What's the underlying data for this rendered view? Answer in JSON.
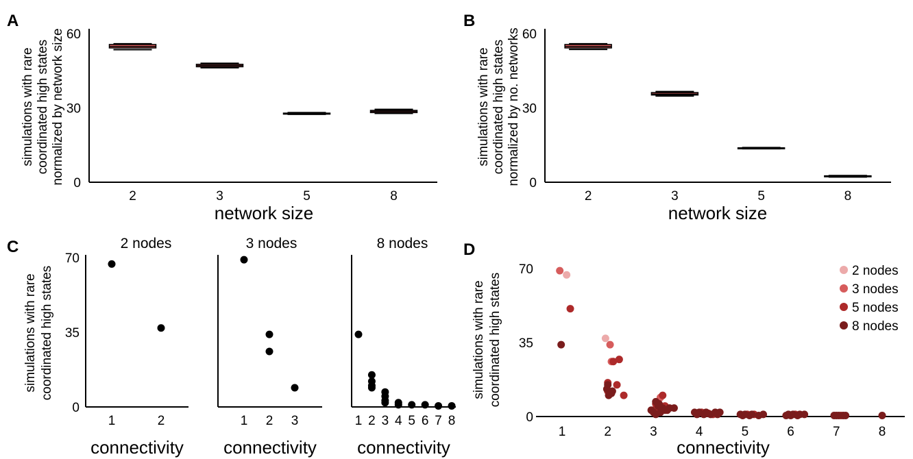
{
  "chart_data": [
    {
      "panel": "A",
      "type": "box",
      "categories": [
        "2",
        "3",
        "5",
        "8"
      ],
      "boxes": [
        {
          "low": 53.5,
          "q1": 54.2,
          "q3": 55.6,
          "high": 55.9,
          "median": 54.8
        },
        {
          "low": 46.2,
          "q1": 46.6,
          "q3": 47.6,
          "high": 48.0,
          "median": 47.1
        },
        {
          "low": 27.4,
          "q1": 27.6,
          "q3": 27.9,
          "high": 28.1,
          "median": 27.8
        },
        {
          "low": 27.8,
          "q1": 28.1,
          "q3": 29.0,
          "high": 29.4,
          "median": 28.6
        }
      ],
      "xlabel": "network size",
      "ylabel": [
        "simulations with rare",
        "coordinated high states",
        "normalized by network size"
      ],
      "yticks": [
        "0",
        "30",
        "60"
      ],
      "ylim": [
        0,
        60
      ],
      "box_color": "#e06060"
    },
    {
      "panel": "B",
      "type": "box",
      "categories": [
        "2",
        "3",
        "5",
        "8"
      ],
      "boxes": [
        {
          "low": 53.6,
          "q1": 54.2,
          "q3": 55.6,
          "high": 55.9,
          "median": 54.8
        },
        {
          "low": 34.8,
          "q1": 35.2,
          "q3": 36.2,
          "high": 36.6,
          "median": 35.6
        },
        {
          "low": 13.5,
          "q1": 13.7,
          "q3": 13.9,
          "high": 14.0,
          "median": 13.8
        },
        {
          "low": 2.1,
          "q1": 2.3,
          "q3": 2.6,
          "high": 2.7,
          "median": 2.4
        }
      ],
      "xlabel": "network size",
      "ylabel": [
        "simulations with rare",
        "coordinated high states",
        "normalized by no. networks"
      ],
      "yticks": [
        "0",
        "30",
        "60"
      ],
      "ylim": [
        0,
        60
      ],
      "box_color": "#e06060"
    },
    {
      "panel": "C",
      "type": "scatter",
      "subplots": [
        {
          "title": "2 nodes",
          "xticks": [
            "1",
            "2"
          ],
          "points": [
            [
              1,
              67
            ],
            [
              2,
              37
            ]
          ]
        },
        {
          "title": "3 nodes",
          "xticks": [
            "1",
            "2",
            "3"
          ],
          "points": [
            [
              1,
              69
            ],
            [
              2,
              34
            ],
            [
              2,
              26
            ],
            [
              3,
              9
            ]
          ]
        },
        {
          "title": "8 nodes",
          "xticks": [
            "1",
            "2",
            "3",
            "4",
            "5",
            "6",
            "7",
            "8"
          ],
          "points": [
            [
              1,
              34
            ],
            [
              2,
              15
            ],
            [
              2,
              12
            ],
            [
              2,
              10
            ],
            [
              2,
              9
            ],
            [
              3,
              7
            ],
            [
              3,
              5
            ],
            [
              3,
              3
            ],
            [
              3,
              2
            ],
            [
              4,
              2
            ],
            [
              4,
              1
            ],
            [
              5,
              1
            ],
            [
              6,
              1
            ],
            [
              7,
              0.5
            ],
            [
              8,
              0.5
            ]
          ]
        }
      ],
      "xlabel": "connectivity",
      "ylabel": [
        "simulations with rare",
        "coordinated high states"
      ],
      "yticks": [
        "0",
        "35",
        "70"
      ],
      "ylim": [
        0,
        70
      ]
    },
    {
      "panel": "D",
      "type": "scatter",
      "xlabel": "connectivity",
      "ylabel": [
        "simulations with rare",
        "coordinated high states"
      ],
      "xticks": [
        "1",
        "2",
        "3",
        "4",
        "5",
        "6",
        "7",
        "8"
      ],
      "yticks": [
        "0",
        "35",
        "70"
      ],
      "ylim": [
        0,
        70
      ],
      "legend": [
        {
          "name": "2 nodes",
          "color": "#ecaaaa"
        },
        {
          "name": "3 nodes",
          "color": "#d65c5c"
        },
        {
          "name": "5 nodes",
          "color": "#ad2a2a"
        },
        {
          "name": "8 nodes",
          "color": "#7a1c1c"
        }
      ],
      "series": [
        {
          "name": "2 nodes",
          "points": [
            [
              1.1,
              67
            ],
            [
              1.95,
              37
            ]
          ]
        },
        {
          "name": "3 nodes",
          "points": [
            [
              0.95,
              69
            ],
            [
              2.05,
              34
            ],
            [
              2.08,
              26
            ],
            [
              3.15,
              9
            ]
          ]
        },
        {
          "name": "5 nodes",
          "points": [
            [
              1.18,
              51
            ],
            [
              2.25,
              27
            ],
            [
              2.12,
              26
            ],
            [
              2.0,
              16
            ],
            [
              2.2,
              15
            ],
            [
              2.0,
              12
            ],
            [
              2.35,
              10
            ],
            [
              3.05,
              6
            ],
            [
              3.2,
              10
            ],
            [
              3.1,
              4
            ],
            [
              3.25,
              5
            ],
            [
              3.0,
              3
            ],
            [
              4.05,
              2
            ],
            [
              4.2,
              1.5
            ],
            [
              4.3,
              1
            ],
            [
              5.05,
              1
            ],
            [
              5.2,
              1
            ],
            [
              6.1,
              1
            ],
            [
              7.1,
              0.5
            ]
          ]
        },
        {
          "name": "8 nodes",
          "points": [
            [
              0.98,
              34
            ],
            [
              2.0,
              15
            ],
            [
              1.98,
              13
            ],
            [
              2.1,
              12
            ],
            [
              2.02,
              10
            ],
            [
              2.08,
              11
            ],
            [
              2.95,
              3
            ],
            [
              3.05,
              7
            ],
            [
              3.1,
              5
            ],
            [
              3.15,
              2
            ],
            [
              3.2,
              4
            ],
            [
              3.3,
              3
            ],
            [
              3.35,
              4
            ],
            [
              3.45,
              4
            ],
            [
              3.0,
              2
            ],
            [
              3.12,
              6
            ],
            [
              3.25,
              3
            ],
            [
              3.05,
              1
            ],
            [
              3.9,
              2
            ],
            [
              3.95,
              1
            ],
            [
              4.0,
              2
            ],
            [
              4.1,
              1
            ],
            [
              4.15,
              2
            ],
            [
              4.25,
              1
            ],
            [
              4.35,
              2
            ],
            [
              4.4,
              1
            ],
            [
              4.45,
              2
            ],
            [
              4.9,
              1
            ],
            [
              4.95,
              0.5
            ],
            [
              5.0,
              1
            ],
            [
              5.1,
              0.5
            ],
            [
              5.15,
              1
            ],
            [
              5.3,
              0.5
            ],
            [
              5.4,
              1
            ],
            [
              5.9,
              0.5
            ],
            [
              5.95,
              1
            ],
            [
              6.0,
              0.5
            ],
            [
              6.05,
              1
            ],
            [
              6.15,
              0.5
            ],
            [
              6.2,
              1
            ],
            [
              6.3,
              1
            ],
            [
              6.95,
              0.5
            ],
            [
              7.0,
              0.5
            ],
            [
              7.05,
              0.5
            ],
            [
              7.15,
              0.5
            ],
            [
              7.2,
              0.5
            ],
            [
              8.0,
              0.5
            ]
          ]
        }
      ]
    }
  ]
}
